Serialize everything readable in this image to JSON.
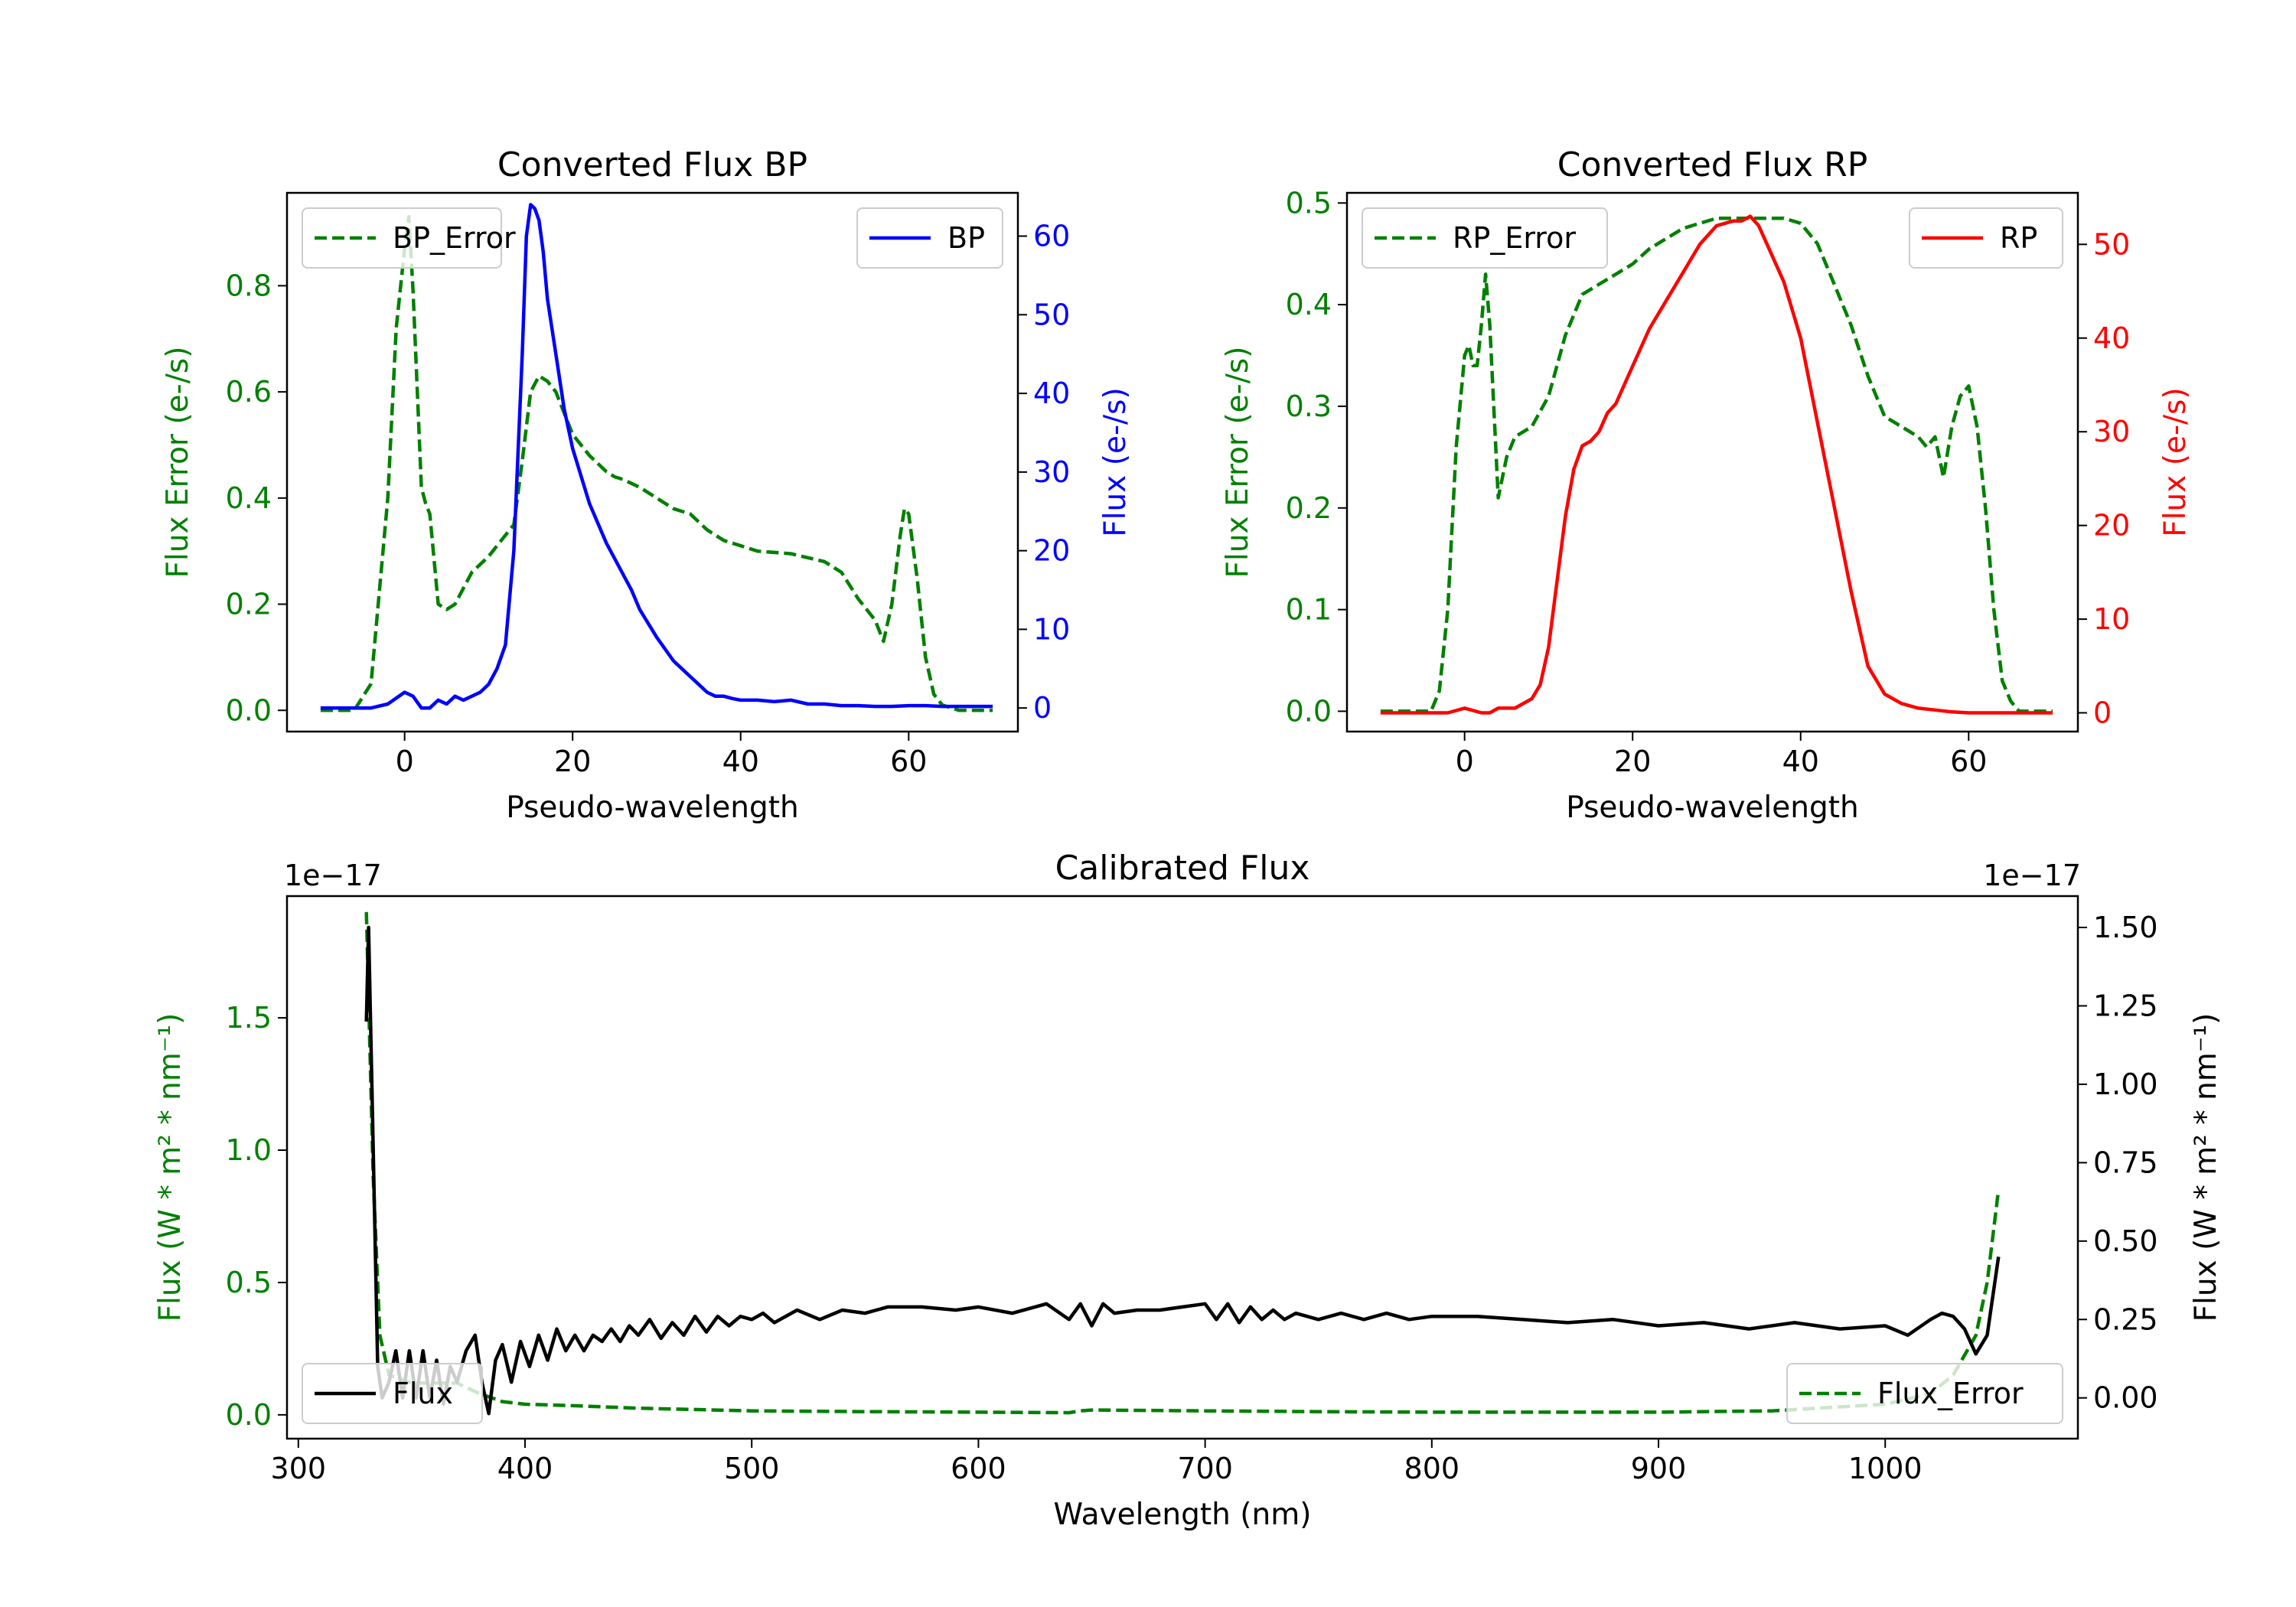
{
  "chart_data": [
    {
      "id": "bp",
      "type": "line",
      "title": "Converted Flux BP",
      "xlabel": "Pseudo-wavelength",
      "xlim": [
        -14,
        73
      ],
      "xticks": [
        0,
        20,
        40,
        60
      ],
      "left_axis": {
        "label": "Flux Error (e-/s)",
        "color": "#008000",
        "lim": [
          -0.04,
          0.975
        ],
        "ticks": [
          0.0,
          0.2,
          0.4,
          0.6,
          0.8
        ],
        "decimals": 1
      },
      "right_axis": {
        "label": "Flux (e-/s)",
        "color": "#0000ff",
        "lim": [
          -3,
          65.5
        ],
        "ticks": [
          0,
          10,
          20,
          30,
          40,
          50,
          60
        ],
        "decimals": 0
      },
      "series": [
        {
          "name": "BP_Error",
          "axis": "left",
          "color": "#008000",
          "dashed": true,
          "x": [
            -10,
            -6,
            -4,
            -2,
            -1,
            0,
            0.5,
            1,
            2,
            2.5,
            3,
            4,
            5,
            6,
            7,
            8,
            10,
            12,
            13,
            14,
            15,
            16,
            17,
            18,
            19,
            20,
            22,
            24,
            25,
            26,
            28,
            30,
            32,
            34,
            36,
            38,
            40,
            42,
            46,
            50,
            52,
            54,
            56,
            57,
            58,
            59,
            59.5,
            60,
            61,
            62,
            63,
            64,
            66,
            68,
            70
          ],
          "y": [
            0.0,
            0.0,
            0.05,
            0.4,
            0.72,
            0.87,
            0.93,
            0.79,
            0.42,
            0.39,
            0.37,
            0.2,
            0.19,
            0.2,
            0.23,
            0.26,
            0.29,
            0.33,
            0.35,
            0.47,
            0.6,
            0.63,
            0.62,
            0.6,
            0.56,
            0.52,
            0.48,
            0.45,
            0.44,
            0.435,
            0.42,
            0.4,
            0.38,
            0.37,
            0.34,
            0.32,
            0.31,
            0.3,
            0.295,
            0.28,
            0.26,
            0.21,
            0.17,
            0.13,
            0.2,
            0.33,
            0.38,
            0.37,
            0.25,
            0.1,
            0.03,
            0.01,
            0.0,
            0.0,
            0.0
          ]
        },
        {
          "name": "BP",
          "axis": "right",
          "color": "#0000ff",
          "dashed": false,
          "x": [
            -10,
            -6,
            -4,
            -2,
            0,
            1,
            2,
            3,
            4,
            5,
            6,
            7,
            8,
            9,
            10,
            11,
            12,
            13,
            14,
            14.5,
            15,
            15.5,
            16,
            16.5,
            17,
            18,
            19,
            20,
            22,
            24,
            26,
            27,
            28,
            30,
            32,
            33,
            34,
            35,
            36,
            37,
            38,
            39,
            40,
            42,
            44,
            46,
            48,
            50,
            52,
            54,
            56,
            58,
            60,
            62,
            64,
            66,
            68,
            70
          ],
          "y": [
            0,
            0,
            0,
            0.5,
            2,
            1.5,
            0,
            0,
            1,
            0.5,
            1.5,
            1,
            1.5,
            2,
            3,
            5,
            8,
            20,
            45,
            60,
            64,
            63.5,
            62,
            58,
            52,
            45,
            38,
            33,
            26,
            21,
            17,
            15,
            12.5,
            9,
            6,
            5,
            4,
            3,
            2,
            1.5,
            1.5,
            1.2,
            1,
            1,
            0.8,
            1,
            0.5,
            0.5,
            0.3,
            0.3,
            0.2,
            0.2,
            0.3,
            0.3,
            0.2,
            0.2,
            0.2,
            0.2
          ]
        }
      ],
      "legend": [
        {
          "label": "BP_Error",
          "placement": "upper-left"
        },
        {
          "label": "BP",
          "placement": "upper-right"
        }
      ]
    },
    {
      "id": "rp",
      "type": "line",
      "title": "Converted Flux RP",
      "xlabel": "Pseudo-wavelength",
      "xlim": [
        -14,
        73
      ],
      "xticks": [
        0,
        20,
        40,
        60
      ],
      "left_axis": {
        "label": "Flux Error (e-/s)",
        "color": "#008000",
        "lim": [
          -0.02,
          0.51
        ],
        "ticks": [
          0.0,
          0.1,
          0.2,
          0.3,
          0.4,
          0.5
        ],
        "decimals": 1
      },
      "right_axis": {
        "label": "Flux (e-/s)",
        "color": "#ff0000",
        "lim": [
          -2,
          55.5
        ],
        "ticks": [
          0,
          10,
          20,
          30,
          40,
          50
        ],
        "decimals": 0
      },
      "series": [
        {
          "name": "RP_Error",
          "axis": "left",
          "color": "#008000",
          "dashed": true,
          "x": [
            -10,
            -6,
            -4,
            -3,
            -2,
            -1,
            0,
            0.5,
            1,
            1.5,
            2,
            2.5,
            3,
            4,
            5,
            6,
            8,
            10,
            12,
            14,
            16,
            18,
            20,
            22,
            24,
            26,
            28,
            30,
            32,
            34,
            36,
            38,
            40,
            42,
            44,
            46,
            48,
            50,
            52,
            54,
            55,
            56,
            57,
            58,
            59,
            60,
            61,
            62,
            63,
            64,
            65,
            66,
            70
          ],
          "y": [
            0.0,
            0.0,
            0.0,
            0.02,
            0.1,
            0.26,
            0.35,
            0.36,
            0.34,
            0.34,
            0.38,
            0.43,
            0.38,
            0.21,
            0.25,
            0.27,
            0.28,
            0.31,
            0.37,
            0.41,
            0.42,
            0.43,
            0.44,
            0.455,
            0.465,
            0.475,
            0.48,
            0.485,
            0.485,
            0.485,
            0.485,
            0.485,
            0.48,
            0.46,
            0.42,
            0.38,
            0.33,
            0.29,
            0.28,
            0.27,
            0.26,
            0.27,
            0.23,
            0.28,
            0.31,
            0.32,
            0.28,
            0.2,
            0.1,
            0.03,
            0.01,
            0.0,
            0.0
          ]
        },
        {
          "name": "RP",
          "axis": "right",
          "color": "#ff0000",
          "dashed": false,
          "x": [
            -10,
            -4,
            -2,
            0,
            2,
            3,
            4,
            6,
            8,
            9,
            10,
            11,
            12,
            13,
            14,
            15,
            16,
            17,
            18,
            20,
            22,
            24,
            26,
            28,
            30,
            32,
            33,
            34,
            35,
            36,
            38,
            40,
            42,
            44,
            46,
            48,
            50,
            52,
            54,
            56,
            58,
            60,
            62,
            66,
            70
          ],
          "y": [
            0,
            0,
            0,
            0.5,
            0,
            0,
            0.5,
            0.5,
            1.5,
            3,
            7,
            14,
            21,
            26,
            28.5,
            29,
            30,
            32,
            33,
            37,
            41,
            44,
            47,
            50,
            52,
            52.5,
            52.5,
            53,
            52,
            50,
            46,
            40,
            31,
            22,
            13,
            5,
            2,
            1,
            0.5,
            0.3,
            0.1,
            0,
            0,
            0,
            0
          ]
        }
      ],
      "legend": [
        {
          "label": "RP_Error",
          "placement": "upper-left"
        },
        {
          "label": "RP",
          "placement": "upper-right"
        }
      ]
    },
    {
      "id": "cal",
      "type": "line",
      "title": "Calibrated Flux",
      "xlabel": "Wavelength (nm)",
      "xlim": [
        295,
        1085
      ],
      "xticks": [
        300,
        400,
        500,
        600,
        700,
        800,
        900,
        1000
      ],
      "left_axis": {
        "label": "Flux (W * m² * nm⁻¹)",
        "color": "#008000",
        "lim": [
          -0.09,
          1.96
        ],
        "ticks": [
          0.0,
          0.5,
          1.0,
          1.5
        ],
        "decimals": 1,
        "scale_label": "1e−17"
      },
      "right_axis": {
        "label": "Flux (W * m² * nm⁻¹)",
        "color": "#000000",
        "lim": [
          -0.13,
          1.6
        ],
        "ticks": [
          0.0,
          0.25,
          0.5,
          0.75,
          1.0,
          1.25,
          1.5
        ],
        "decimals": 2,
        "scale_label": "1e−17"
      },
      "series": [
        {
          "name": "Flux_Error",
          "axis": "left",
          "color": "#008000",
          "dashed": true,
          "x": [
            330,
            333,
            336,
            340,
            350,
            360,
            370,
            380,
            390,
            400,
            420,
            450,
            500,
            550,
            600,
            640,
            645,
            650,
            700,
            750,
            800,
            850,
            900,
            950,
            1000,
            1020,
            1030,
            1040,
            1045,
            1050
          ],
          "y": [
            1.9,
            0.9,
            0.3,
            0.15,
            0.12,
            0.12,
            0.12,
            0.08,
            0.05,
            0.04,
            0.035,
            0.025,
            0.015,
            0.012,
            0.01,
            0.008,
            0.015,
            0.018,
            0.015,
            0.012,
            0.01,
            0.01,
            0.01,
            0.015,
            0.04,
            0.08,
            0.15,
            0.3,
            0.5,
            0.85
          ]
        },
        {
          "name": "Flux",
          "axis": "right",
          "color": "#000000",
          "dashed": false,
          "x": [
            330,
            331,
            333,
            335,
            337,
            340,
            343,
            346,
            349,
            352,
            355,
            358,
            361,
            364,
            367,
            370,
            374,
            378,
            381,
            384,
            387,
            390,
            394,
            398,
            402,
            406,
            410,
            414,
            418,
            422,
            426,
            430,
            434,
            438,
            442,
            446,
            450,
            455,
            460,
            465,
            470,
            475,
            480,
            485,
            490,
            495,
            500,
            505,
            510,
            520,
            530,
            540,
            550,
            560,
            575,
            590,
            600,
            615,
            630,
            640,
            645,
            650,
            655,
            660,
            670,
            680,
            690,
            700,
            705,
            710,
            715,
            720,
            725,
            730,
            735,
            740,
            750,
            760,
            770,
            780,
            790,
            800,
            820,
            840,
            860,
            880,
            900,
            920,
            940,
            960,
            980,
            1000,
            1010,
            1020,
            1025,
            1030,
            1035,
            1040,
            1045,
            1050
          ],
          "y": [
            1.2,
            1.5,
            0.8,
            0.1,
            0.0,
            0.05,
            0.15,
            0.0,
            0.15,
            0.0,
            0.15,
            0.0,
            0.12,
            -0.02,
            0.1,
            0.05,
            0.15,
            0.2,
            0.05,
            -0.05,
            0.12,
            0.17,
            0.05,
            0.18,
            0.1,
            0.2,
            0.12,
            0.22,
            0.15,
            0.2,
            0.15,
            0.2,
            0.18,
            0.22,
            0.18,
            0.23,
            0.2,
            0.25,
            0.19,
            0.24,
            0.2,
            0.26,
            0.21,
            0.26,
            0.23,
            0.26,
            0.25,
            0.27,
            0.24,
            0.28,
            0.25,
            0.28,
            0.27,
            0.29,
            0.29,
            0.28,
            0.29,
            0.27,
            0.3,
            0.25,
            0.3,
            0.23,
            0.3,
            0.27,
            0.28,
            0.28,
            0.29,
            0.3,
            0.25,
            0.3,
            0.24,
            0.29,
            0.25,
            0.28,
            0.25,
            0.27,
            0.25,
            0.27,
            0.25,
            0.27,
            0.25,
            0.26,
            0.26,
            0.25,
            0.24,
            0.25,
            0.23,
            0.24,
            0.22,
            0.24,
            0.22,
            0.23,
            0.2,
            0.25,
            0.27,
            0.26,
            0.22,
            0.14,
            0.2,
            0.45
          ]
        }
      ],
      "legend": [
        {
          "label": "Flux",
          "placement": "lower-left"
        },
        {
          "label": "Flux_Error",
          "placement": "lower-right"
        }
      ]
    }
  ]
}
